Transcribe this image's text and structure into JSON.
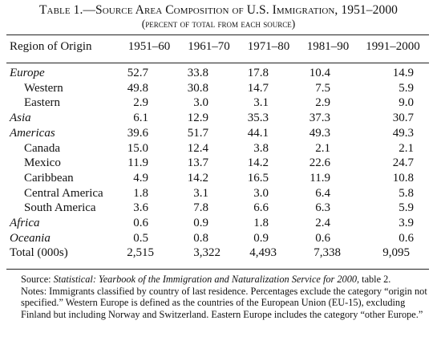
{
  "title": "Table 1.—Source Area Composition of U.S. Immigration, 1951–2000",
  "subtitle": "(percent of total from each source)",
  "columns": {
    "label": "Region of Origin",
    "periods": [
      "1951–60",
      "1961–70",
      "1971–80",
      "1981–90",
      "1991–2000"
    ]
  },
  "rows": [
    {
      "label": "Europe",
      "kind": "region",
      "values": [
        "52.7",
        "33.8",
        "17.8",
        "10.4",
        "14.9"
      ]
    },
    {
      "label": "Western",
      "kind": "sub",
      "values": [
        "49.8",
        "30.8",
        "14.7",
        "7.5",
        "5.9"
      ]
    },
    {
      "label": "Eastern",
      "kind": "sub",
      "values": [
        "2.9",
        "3.0",
        "3.1",
        "2.9",
        "9.0"
      ]
    },
    {
      "label": "Asia",
      "kind": "region",
      "values": [
        "6.1",
        "12.9",
        "35.3",
        "37.3",
        "30.7"
      ]
    },
    {
      "label": "Americas",
      "kind": "region",
      "values": [
        "39.6",
        "51.7",
        "44.1",
        "49.3",
        "49.3"
      ]
    },
    {
      "label": "Canada",
      "kind": "sub",
      "values": [
        "15.0",
        "12.4",
        "3.8",
        "2.1",
        "2.1"
      ]
    },
    {
      "label": "Mexico",
      "kind": "sub",
      "values": [
        "11.9",
        "13.7",
        "14.2",
        "22.6",
        "24.7"
      ]
    },
    {
      "label": "Caribbean",
      "kind": "sub",
      "values": [
        "4.9",
        "14.2",
        "16.5",
        "11.9",
        "10.8"
      ]
    },
    {
      "label": "Central America",
      "kind": "sub",
      "values": [
        "1.8",
        "3.1",
        "3.0",
        "6.4",
        "5.8"
      ]
    },
    {
      "label": "South America",
      "kind": "sub",
      "values": [
        "3.6",
        "7.8",
        "6.6",
        "6.3",
        "5.9"
      ]
    },
    {
      "label": "Africa",
      "kind": "region",
      "values": [
        "0.6",
        "0.9",
        "1.8",
        "2.4",
        "3.9"
      ]
    },
    {
      "label": "Oceania",
      "kind": "region",
      "values": [
        "0.5",
        "0.8",
        "0.9",
        "0.6",
        "0.6"
      ]
    },
    {
      "label": "Total (000s)",
      "kind": "total",
      "values": [
        "2,515",
        "3,322",
        "4,493",
        "7,338",
        "9,095"
      ]
    }
  ],
  "source": {
    "prefix": "Source: ",
    "italic": "Statistical: Yearbook of the Immigration and Naturalization Service for 2000",
    "suffix": ", table 2."
  },
  "notes": "Notes: Immigrants classified by country of last residence. Percentages exclude the category “origin not specified.” Western Europe is defined as the countries of the European Union (EU-15), excluding Finland but including Norway and Switzerland. Eastern Europe includes the category “other Europe.”"
}
